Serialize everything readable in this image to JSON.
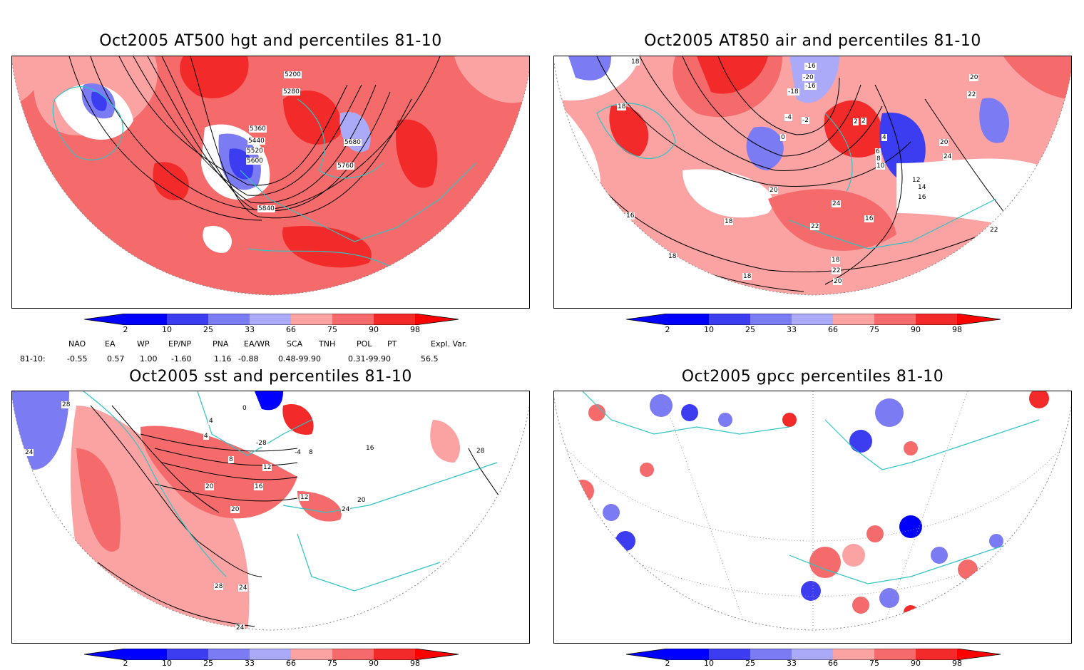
{
  "panels": [
    {
      "title": "Oct2005 AT500 hgt and percentiles 81-10",
      "contour_labels": [
        "5200",
        "5280",
        "5360",
        "5440",
        "5520",
        "5600",
        "5680",
        "5760",
        "5840"
      ]
    },
    {
      "title": "Oct2005 AT850 air and percentiles 81-10",
      "contour_labels": [
        "18",
        "-16",
        "-20",
        "-16",
        "-18",
        "2",
        "-2",
        "0",
        "4",
        "6",
        "8",
        "10",
        "12",
        "14",
        "16",
        "18",
        "20",
        "22",
        "24",
        "16",
        "18",
        "22",
        "20",
        "18",
        "16",
        "18",
        "18",
        "20",
        "2",
        "-4",
        "22",
        "24",
        "20",
        "22"
      ]
    },
    {
      "title": "Oct2005 sst and percentiles 81-10",
      "contour_labels": [
        "28",
        "24",
        "20",
        "4",
        "0",
        "4",
        "8",
        "12",
        "16",
        "20",
        "24",
        "28",
        "24",
        "28",
        "-28",
        "-4",
        "8",
        "12",
        "20",
        "24",
        "16"
      ]
    },
    {
      "title": "Oct2005 gpcc percentiles 81-10",
      "contour_labels": []
    }
  ],
  "colorbar": {
    "labels": [
      "2",
      "10",
      "25",
      "33",
      "66",
      "75",
      "90",
      "98"
    ],
    "colors": {
      "b1": "#0000ff",
      "b2": "#3c3cf0",
      "b3": "#7b7bf3",
      "b4": "#aaaaf8",
      "w": "#ffffff",
      "r1": "#fba3a3",
      "r2": "#f56b6b",
      "r3": "#f32a2a",
      "r4": "#ff0000"
    }
  },
  "indices": {
    "headers": [
      "NAO",
      "EA",
      "WP",
      "EP/NP",
      "PNA",
      "EA/WR",
      "SCA",
      "TNH",
      "POL",
      "PT",
      "Expl. Var."
    ],
    "row_label": "81-10:",
    "values": [
      "-0.55",
      "0.57",
      "1.00",
      "-1.60",
      "1.16",
      "-0.88",
      "0.48-99.90",
      "0.31-99.90",
      "56.5"
    ]
  },
  "map_colors": {
    "coast": "#2ec4c4",
    "grid": "#888888",
    "contour": "#000000"
  }
}
